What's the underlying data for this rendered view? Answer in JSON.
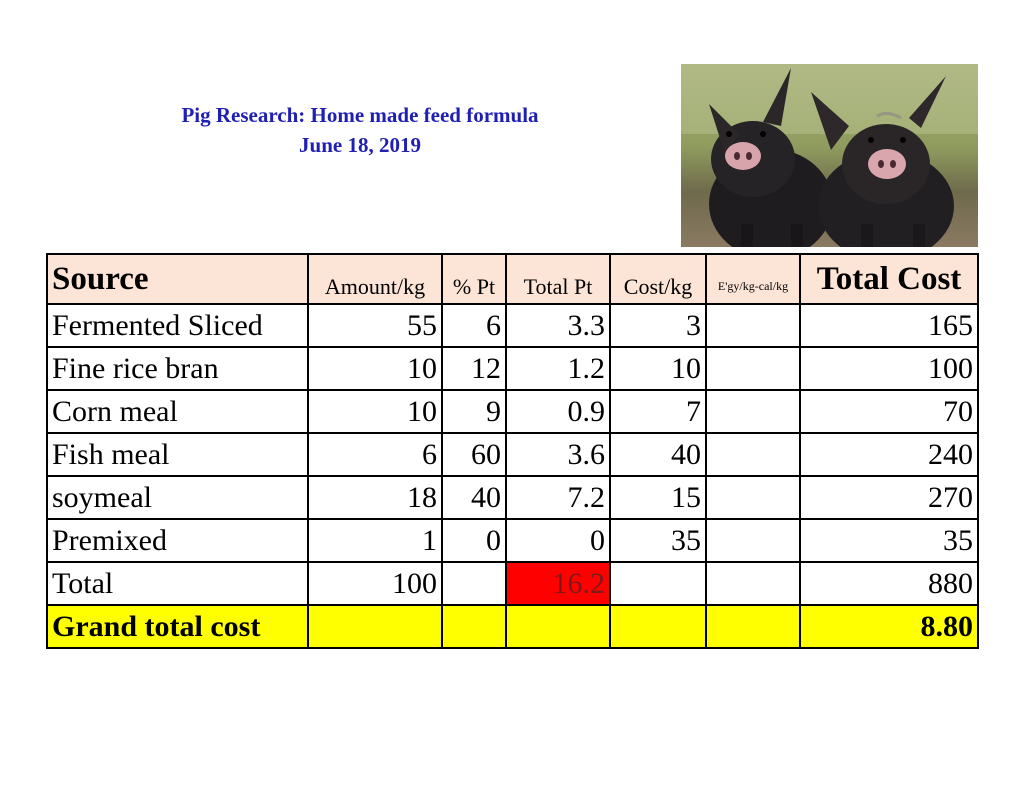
{
  "title": "Pig Research: Home made feed formula",
  "date": "June 18, 2019",
  "colors": {
    "title": "#1f1fb4",
    "header_bg": "#fce4d6",
    "grand_bg": "#ffff00",
    "highlight": "#ff0000"
  },
  "table": {
    "headers": [
      "Source",
      "Amount/kg",
      "% Pt",
      "Total Pt",
      "Cost/kg",
      "E'gy/kg-cal/kg",
      "Total Cost"
    ],
    "rows": [
      [
        "Fermented Sliced",
        "55",
        "6",
        "3.3",
        "3",
        "",
        "165"
      ],
      [
        "Fine rice bran",
        "10",
        "12",
        "1.2",
        "10",
        "",
        "100"
      ],
      [
        "Corn meal",
        "10",
        "9",
        "0.9",
        "7",
        "",
        "70"
      ],
      [
        "Fish meal",
        "6",
        "60",
        "3.6",
        "40",
        "",
        "240"
      ],
      [
        "soymeal",
        "18",
        "40",
        "7.2",
        "15",
        "",
        "270"
      ],
      [
        "Premixed",
        "1",
        "0",
        "0",
        "35",
        "",
        "35"
      ]
    ],
    "total": [
      "Total",
      "100",
      "",
      "16.2",
      "",
      "",
      "880"
    ],
    "grand": [
      "Grand total cost",
      "",
      "",
      "",
      "",
      "",
      "8.80"
    ]
  }
}
